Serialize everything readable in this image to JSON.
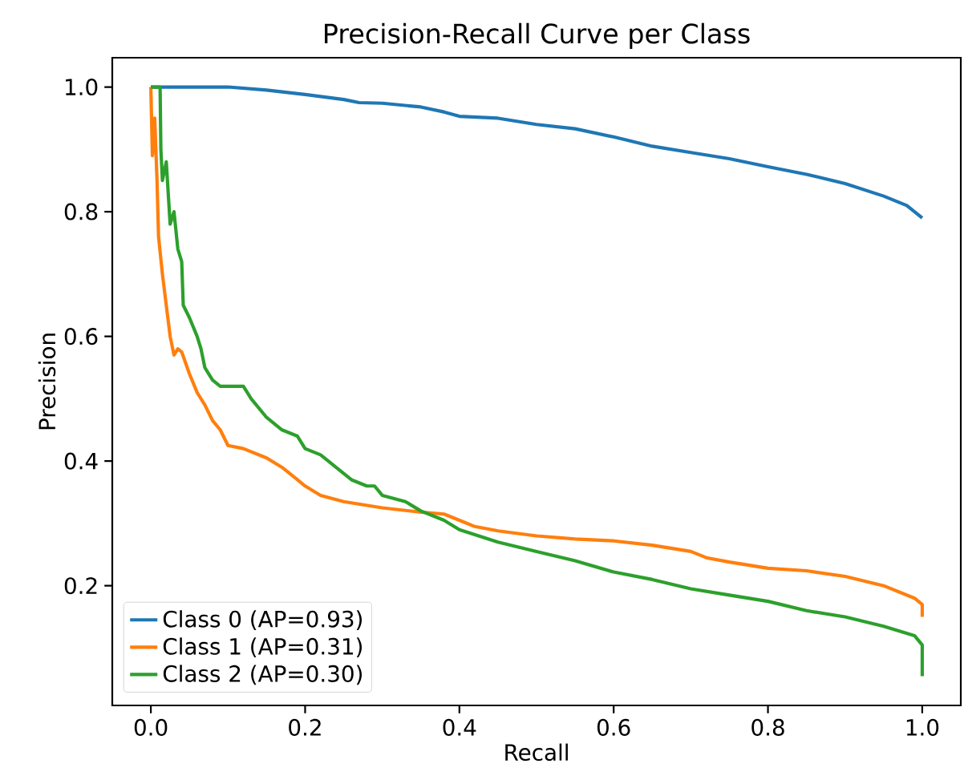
{
  "chart_data": {
    "type": "line",
    "title": "Precision-Recall Curve per Class",
    "xlabel": "Recall",
    "ylabel": "Precision",
    "xlim": [
      -0.05,
      1.05
    ],
    "ylim": [
      0.008,
      1.047
    ],
    "xticks": [
      {
        "value": 0,
        "label": "0.0"
      },
      {
        "value": 0.2,
        "label": "0.2"
      },
      {
        "value": 0.4,
        "label": "0.4"
      },
      {
        "value": 0.6,
        "label": "0.6"
      },
      {
        "value": 0.8,
        "label": "0.8"
      },
      {
        "value": 1,
        "label": "1.0"
      }
    ],
    "yticks": [
      {
        "value": 0.2,
        "label": "0.2"
      },
      {
        "value": 0.4,
        "label": "0.4"
      },
      {
        "value": 0.6,
        "label": "0.6"
      },
      {
        "value": 0.8,
        "label": "0.8"
      },
      {
        "value": 1,
        "label": "1.0"
      }
    ],
    "grid": false,
    "legend": "bottom left",
    "marker": "none",
    "line_style": "solid",
    "series": [
      {
        "name": "Class 0 (AP=0.93)",
        "color": "#1f77b4",
        "x": [
          0,
          0.1,
          0.15,
          0.2,
          0.25,
          0.27,
          0.3,
          0.35,
          0.38,
          0.4,
          0.45,
          0.5,
          0.55,
          0.6,
          0.65,
          0.7,
          0.75,
          0.8,
          0.85,
          0.9,
          0.95,
          0.98,
          1.0
        ],
        "values": [
          1.0,
          1.0,
          0.995,
          0.988,
          0.98,
          0.975,
          0.974,
          0.968,
          0.96,
          0.953,
          0.95,
          0.94,
          0.933,
          0.92,
          0.905,
          0.895,
          0.885,
          0.872,
          0.86,
          0.845,
          0.825,
          0.81,
          0.79
        ]
      },
      {
        "name": "Class 1 (AP=0.31)",
        "color": "#ff7f0e",
        "x": [
          0,
          0.002,
          0.005,
          0.008,
          0.01,
          0.015,
          0.02,
          0.025,
          0.03,
          0.035,
          0.04,
          0.05,
          0.06,
          0.07,
          0.08,
          0.09,
          0.1,
          0.12,
          0.15,
          0.17,
          0.19,
          0.2,
          0.22,
          0.25,
          0.3,
          0.35,
          0.38,
          0.4,
          0.42,
          0.45,
          0.5,
          0.55,
          0.6,
          0.65,
          0.7,
          0.72,
          0.75,
          0.8,
          0.85,
          0.9,
          0.95,
          0.99,
          1.0,
          1.0
        ],
        "values": [
          1.0,
          0.89,
          0.95,
          0.85,
          0.76,
          0.7,
          0.65,
          0.6,
          0.57,
          0.58,
          0.575,
          0.54,
          0.51,
          0.49,
          0.465,
          0.45,
          0.425,
          0.42,
          0.405,
          0.39,
          0.37,
          0.36,
          0.345,
          0.335,
          0.325,
          0.318,
          0.315,
          0.305,
          0.295,
          0.288,
          0.28,
          0.275,
          0.272,
          0.265,
          0.255,
          0.245,
          0.238,
          0.228,
          0.224,
          0.215,
          0.2,
          0.18,
          0.17,
          0.15
        ]
      },
      {
        "name": "Class 2 (AP=0.30)",
        "color": "#2ca02c",
        "x": [
          0,
          0.012,
          0.013,
          0.015,
          0.02,
          0.025,
          0.03,
          0.035,
          0.04,
          0.042,
          0.05,
          0.06,
          0.065,
          0.07,
          0.08,
          0.09,
          0.1,
          0.12,
          0.13,
          0.15,
          0.17,
          0.19,
          0.2,
          0.22,
          0.24,
          0.26,
          0.28,
          0.29,
          0.3,
          0.33,
          0.35,
          0.38,
          0.4,
          0.45,
          0.5,
          0.55,
          0.6,
          0.65,
          0.7,
          0.75,
          0.8,
          0.85,
          0.9,
          0.95,
          0.99,
          1.0,
          1.0
        ],
        "values": [
          1.0,
          1.0,
          0.9,
          0.85,
          0.88,
          0.78,
          0.8,
          0.74,
          0.72,
          0.65,
          0.63,
          0.6,
          0.58,
          0.55,
          0.53,
          0.52,
          0.52,
          0.52,
          0.5,
          0.47,
          0.45,
          0.44,
          0.42,
          0.41,
          0.39,
          0.37,
          0.36,
          0.36,
          0.345,
          0.335,
          0.32,
          0.305,
          0.29,
          0.27,
          0.255,
          0.24,
          0.222,
          0.21,
          0.195,
          0.185,
          0.175,
          0.16,
          0.15,
          0.135,
          0.12,
          0.105,
          0.055
        ]
      }
    ]
  }
}
